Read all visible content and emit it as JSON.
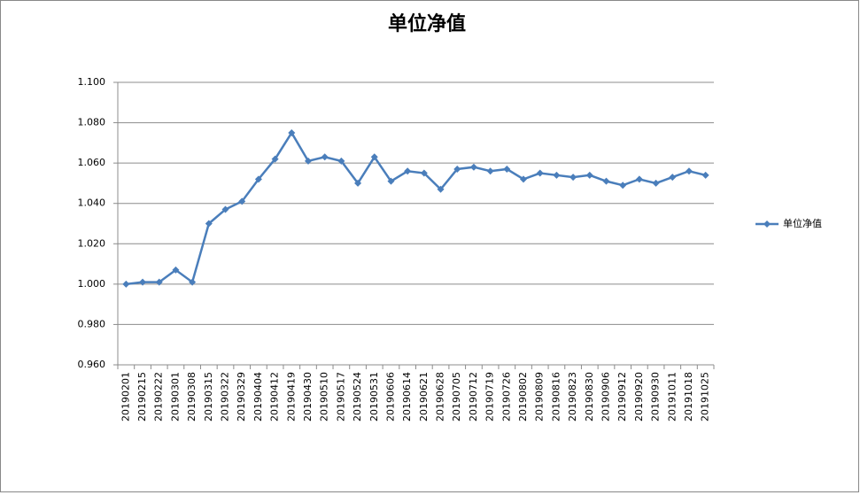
{
  "chart_data": {
    "type": "line",
    "title": "单位净值",
    "categories": [
      "20190201",
      "20190215",
      "20190222",
      "20190301",
      "20190308",
      "20190315",
      "20190322",
      "20190329",
      "20190404",
      "20190412",
      "20190419",
      "20190430",
      "20190510",
      "20190517",
      "20190524",
      "20190531",
      "20190606",
      "20190614",
      "20190621",
      "20190628",
      "20190705",
      "20190712",
      "20190719",
      "20190726",
      "20190802",
      "20190809",
      "20190816",
      "20190823",
      "20190830",
      "20190906",
      "20190912",
      "20190920",
      "20190930",
      "20191011",
      "20191018",
      "20191025"
    ],
    "series": [
      {
        "name": "单位净值",
        "color": "#4a7ebb",
        "values": [
          1.0,
          1.001,
          1.001,
          1.007,
          1.001,
          1.03,
          1.037,
          1.041,
          1.052,
          1.062,
          1.075,
          1.061,
          1.063,
          1.061,
          1.05,
          1.063,
          1.051,
          1.056,
          1.055,
          1.047,
          1.057,
          1.058,
          1.056,
          1.057,
          1.052,
          1.055,
          1.054,
          1.053,
          1.054,
          1.051,
          1.049,
          1.052,
          1.05,
          1.053,
          1.056,
          1.054
        ]
      }
    ],
    "ylim": [
      0.96,
      1.1
    ],
    "yticks": [
      {
        "value": 0.96,
        "label": "0.960"
      },
      {
        "value": 0.98,
        "label": "0.980"
      },
      {
        "value": 1.0,
        "label": "1.000"
      },
      {
        "value": 1.02,
        "label": "1.020"
      },
      {
        "value": 1.04,
        "label": "1.040"
      },
      {
        "value": 1.06,
        "label": "1.060"
      },
      {
        "value": 1.08,
        "label": "1.080"
      },
      {
        "value": 1.1,
        "label": "1.100"
      }
    ],
    "grid": true,
    "legend": "right"
  }
}
